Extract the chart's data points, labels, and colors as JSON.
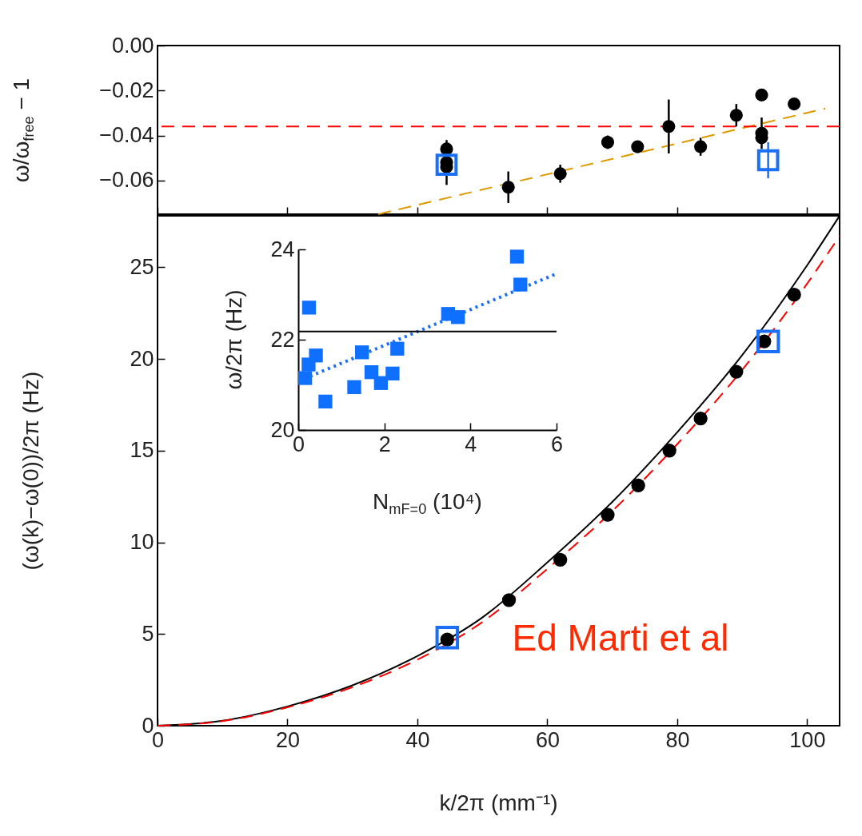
{
  "chart_data": [
    {
      "type": "scatter",
      "ylabel": "ω/ω$_{free}$ − 1",
      "xlim": [
        0,
        105
      ],
      "xticks": [
        0,
        20,
        40,
        60,
        80,
        100
      ],
      "ylim": [
        -0.075,
        0
      ],
      "yticks": [
        {
          "value": 0,
          "label": "0.00"
        },
        {
          "value": -0.02,
          "label": "−0.02"
        },
        {
          "value": -0.04,
          "label": "−0.04"
        },
        {
          "value": -0.06,
          "label": "−0.06"
        }
      ],
      "tick_labels": "y",
      "marker": "circle",
      "ref_lines": [
        {
          "axis": "y",
          "value": -0.036,
          "color": "#ff0000",
          "line_style": "dashed"
        }
      ],
      "series": [
        {
          "type": "line",
          "color": "#dd9a00",
          "line_style": "dashed",
          "marker": "none",
          "x": [
            34.0,
            102.8
          ],
          "values": [
            -0.075,
            -0.028
          ]
        },
        {
          "color": "#000000",
          "x": [
            44.5,
            44.5,
            44.5,
            54.0,
            62.0,
            69.3,
            73.9,
            78.7,
            83.6,
            89.1,
            93.0,
            93.0,
            93.0,
            98.0
          ],
          "values": [
            -0.046,
            -0.052,
            -0.054,
            -0.063,
            -0.057,
            -0.043,
            -0.045,
            -0.036,
            -0.045,
            -0.031,
            -0.022,
            -0.039,
            -0.041,
            -0.026
          ],
          "errors": [
            null,
            0.01,
            null,
            0.007,
            0.004,
            0.003,
            null,
            0.012,
            0.004,
            0.005,
            null,
            0.007,
            null,
            0.002
          ]
        },
        {
          "color": "#1a6ff5",
          "marker": "square",
          "x": [
            44.5,
            94.0
          ],
          "values": [
            -0.053,
            -0.051
          ],
          "errors": [
            null,
            0.008
          ]
        }
      ]
    },
    {
      "type": "scatter",
      "xlabel": "k/2π (mm⁻¹)",
      "ylabel": "(ω(k)−ω(0))/2π  (Hz)",
      "xlim": [
        0,
        105
      ],
      "xticks": [
        0,
        20,
        40,
        60,
        80,
        100
      ],
      "ylim": [
        0,
        27.8
      ],
      "yticks": [
        0,
        5,
        10,
        15,
        20,
        25
      ],
      "marker": "circle",
      "annotations": [
        "Ed Marti et al"
      ],
      "series": [
        {
          "type": "line",
          "color": "#000000",
          "line_style": "solid",
          "marker": "none",
          "x": [
            0,
            10,
            20,
            30,
            40,
            50,
            60,
            70,
            80,
            90,
            100,
            105
          ],
          "values": [
            0,
            0.27,
            1.05,
            2.2,
            3.8,
            5.9,
            8.9,
            12.2,
            16.0,
            20.2,
            25.1,
            27.8
          ]
        },
        {
          "type": "line",
          "color": "#ff0000",
          "line_style": "dashed",
          "marker": "none",
          "x": [
            0,
            10,
            20,
            30,
            40,
            50,
            60,
            70,
            80,
            90,
            100,
            105
          ],
          "values": [
            0,
            0.25,
            1.0,
            2.1,
            3.6,
            5.65,
            8.55,
            11.7,
            15.35,
            19.4,
            24.1,
            26.7
          ]
        },
        {
          "color": "#000000",
          "x": [
            44.6,
            54.1,
            62.0,
            69.3,
            74.0,
            78.8,
            83.6,
            89.1,
            93.4,
            98.0
          ],
          "values": [
            4.7,
            6.85,
            9.05,
            11.5,
            13.1,
            15.0,
            16.75,
            19.3,
            20.95,
            23.5
          ]
        },
        {
          "color": "#1a6ff5",
          "marker": "square",
          "x": [
            44.6,
            94.0
          ],
          "values": [
            4.8,
            20.95
          ]
        }
      ]
    },
    {
      "type": "scatter",
      "xlabel": "N$_{mF=0}$  (10⁴)",
      "ylabel": "ω/2π  (Hz)",
      "xlim": [
        0,
        6
      ],
      "xticks": [
        0,
        2,
        4,
        6
      ],
      "ylim": [
        20,
        24
      ],
      "yticks": [
        20,
        22,
        24
      ],
      "marker": "square",
      "ref_lines": [
        {
          "axis": "y",
          "value": 22.18,
          "color": "#000000",
          "line_style": "solid"
        }
      ],
      "series": [
        {
          "type": "line",
          "color": "#1a6ff5",
          "line_style": "dotted",
          "marker": "none",
          "x": [
            0,
            6
          ],
          "values": [
            21.08,
            23.46
          ]
        },
        {
          "color": "#0f6fff",
          "x": [
            0.25,
            0.16,
            0.24,
            0.41,
            0.63,
            1.3,
            1.48,
            1.7,
            1.92,
            2.19,
            2.3,
            3.48,
            3.71,
            5.08,
            5.16
          ],
          "values": [
            22.71,
            21.15,
            21.45,
            21.65,
            20.63,
            20.95,
            21.72,
            21.28,
            21.04,
            21.25,
            21.8,
            22.57,
            22.5,
            23.84,
            23.22
          ]
        }
      ]
    }
  ]
}
